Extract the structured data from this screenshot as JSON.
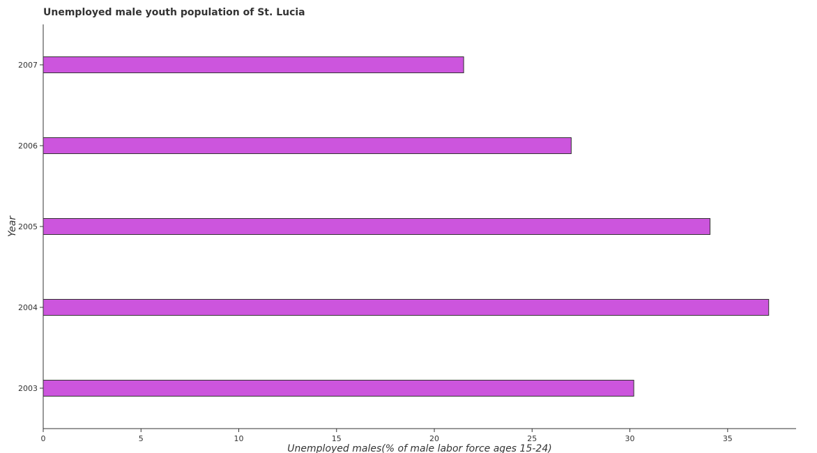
{
  "chart_data": {
    "type": "bar",
    "orientation": "horizontal",
    "title": "Unemployed male youth population of St. Lucia",
    "xlabel": "Unemployed males(% of male labor force ages 15-24)",
    "ylabel": "Year",
    "categories": [
      "2003",
      "2004",
      "2005",
      "2006",
      "2007"
    ],
    "values": [
      30.2,
      37.1,
      34.1,
      27.0,
      21.5
    ],
    "xlim": [
      0,
      38.5
    ],
    "xticks": [
      0,
      5,
      10,
      15,
      20,
      25,
      30,
      35
    ],
    "grid": false,
    "legend": "none",
    "colors": {
      "bar_fill": "#cc55dd",
      "bar_stroke": "#333333",
      "axis": "#333333",
      "text": "#333333"
    }
  }
}
